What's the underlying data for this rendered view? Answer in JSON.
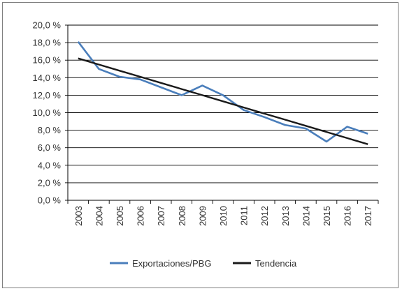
{
  "chart_data": {
    "type": "line",
    "title": "",
    "xlabel": "",
    "ylabel": "",
    "categories": [
      "2003",
      "2004",
      "2005",
      "2006",
      "2007",
      "2008",
      "2009",
      "2010",
      "2011",
      "2012",
      "2013",
      "2014",
      "2015",
      "2016",
      "2017"
    ],
    "yticks": [
      "0,0 %",
      "2,0 %",
      "4,0 %",
      "6,0 %",
      "8,0 %",
      "10,0 %",
      "12,0 %",
      "14,0 %",
      "16,0 %",
      "18,0 %",
      "20,0 %"
    ],
    "ylim": [
      0,
      20
    ],
    "grid": true,
    "legend_position": "bottom",
    "series": [
      {
        "name": "Exportaciones/PBG",
        "color": "#4a7ebb",
        "values": [
          18.1,
          15.0,
          14.1,
          13.8,
          12.9,
          12.0,
          13.1,
          12.0,
          10.3,
          9.5,
          8.6,
          8.2,
          6.7,
          8.4,
          7.6
        ]
      },
      {
        "name": "Tendencia",
        "color": "#1a1a1a",
        "values": [
          16.2,
          15.5,
          14.8,
          14.1,
          13.4,
          12.7,
          12.0,
          11.3,
          10.6,
          9.9,
          9.2,
          8.5,
          7.8,
          7.1,
          6.4
        ]
      }
    ]
  }
}
